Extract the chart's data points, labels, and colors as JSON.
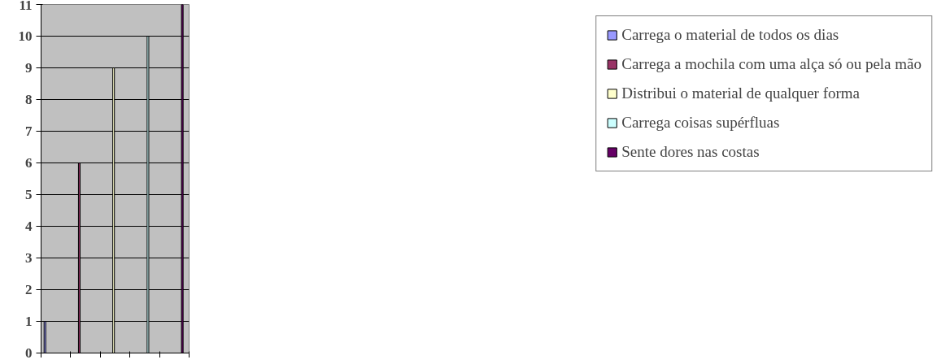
{
  "chart_data": {
    "type": "bar",
    "categories": [
      null,
      null,
      null,
      null,
      null
    ],
    "series": [
      {
        "name": "Carrega o material de todos os dias",
        "color": "#9999ff",
        "values": [
          1,
          null,
          null,
          null,
          null
        ]
      },
      {
        "name": "Carrega a mochila com uma alça só ou pela mão",
        "color": "#993366",
        "values": [
          null,
          6,
          null,
          null,
          null
        ]
      },
      {
        "name": "Distribui o material de qualquer forma",
        "color": "#ffffcc",
        "values": [
          null,
          null,
          9,
          null,
          null
        ]
      },
      {
        "name": "Carrega coisas supérfluas",
        "color": "#ccffff",
        "values": [
          null,
          null,
          null,
          10,
          null
        ]
      },
      {
        "name": "Sente dores nas costas",
        "color": "#660066",
        "values": [
          null,
          null,
          null,
          null,
          11
        ]
      }
    ],
    "ylim": [
      0,
      11
    ],
    "yticks": [
      0,
      1,
      2,
      3,
      4,
      5,
      6,
      7,
      8,
      9,
      10,
      11
    ],
    "grid": "y",
    "legend": "right",
    "tick_labels": "y"
  }
}
